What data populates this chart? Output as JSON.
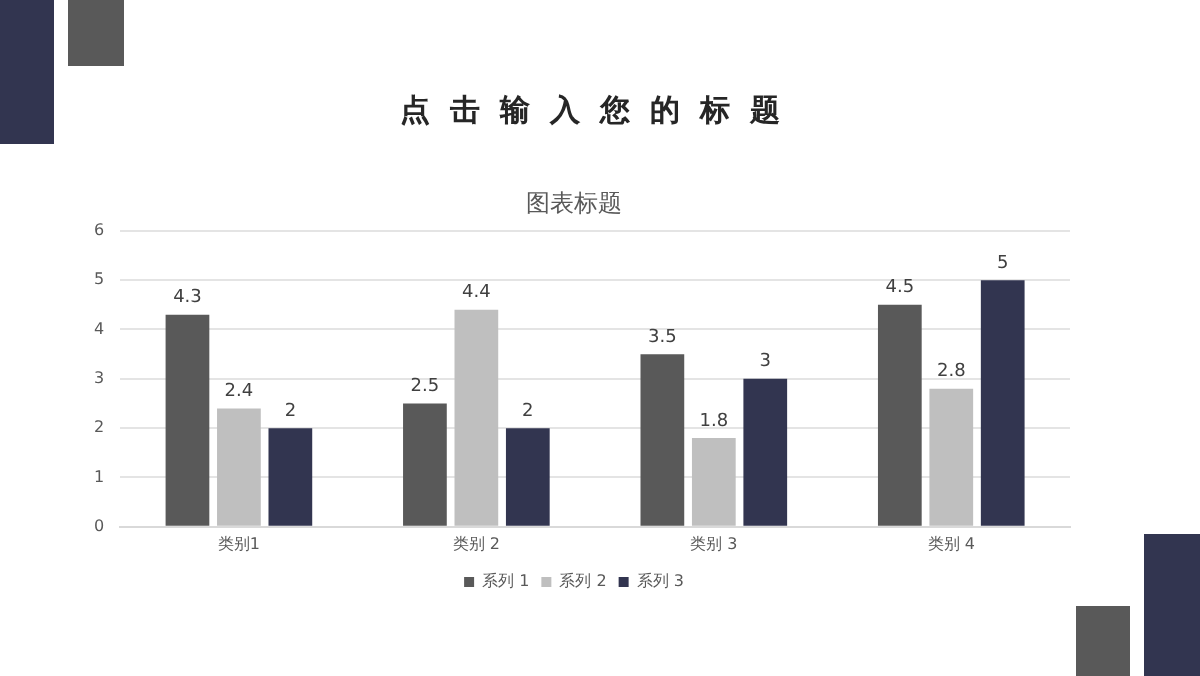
{
  "chart_data": {
    "type": "bar",
    "title": "点击输入您的标题",
    "subtitle": "图表标题",
    "categories": [
      "类别1",
      "类别 2",
      "类别 3",
      "类别 4"
    ],
    "series": [
      {
        "name": "系列 1",
        "color": "#595959",
        "values": [
          4.3,
          2.5,
          3.5,
          4.5
        ]
      },
      {
        "name": "系列 2",
        "color": "#bfbfbf",
        "values": [
          2.4,
          4.4,
          1.8,
          2.8
        ]
      },
      {
        "name": "系列 3",
        "color": "#323550",
        "values": [
          2,
          2,
          3,
          5
        ]
      }
    ],
    "ylim": [
      0,
      6
    ],
    "yticks": [
      0,
      1,
      2,
      3,
      4,
      5,
      6
    ],
    "grid": "y",
    "legend": "bottom",
    "data_labels": true
  }
}
